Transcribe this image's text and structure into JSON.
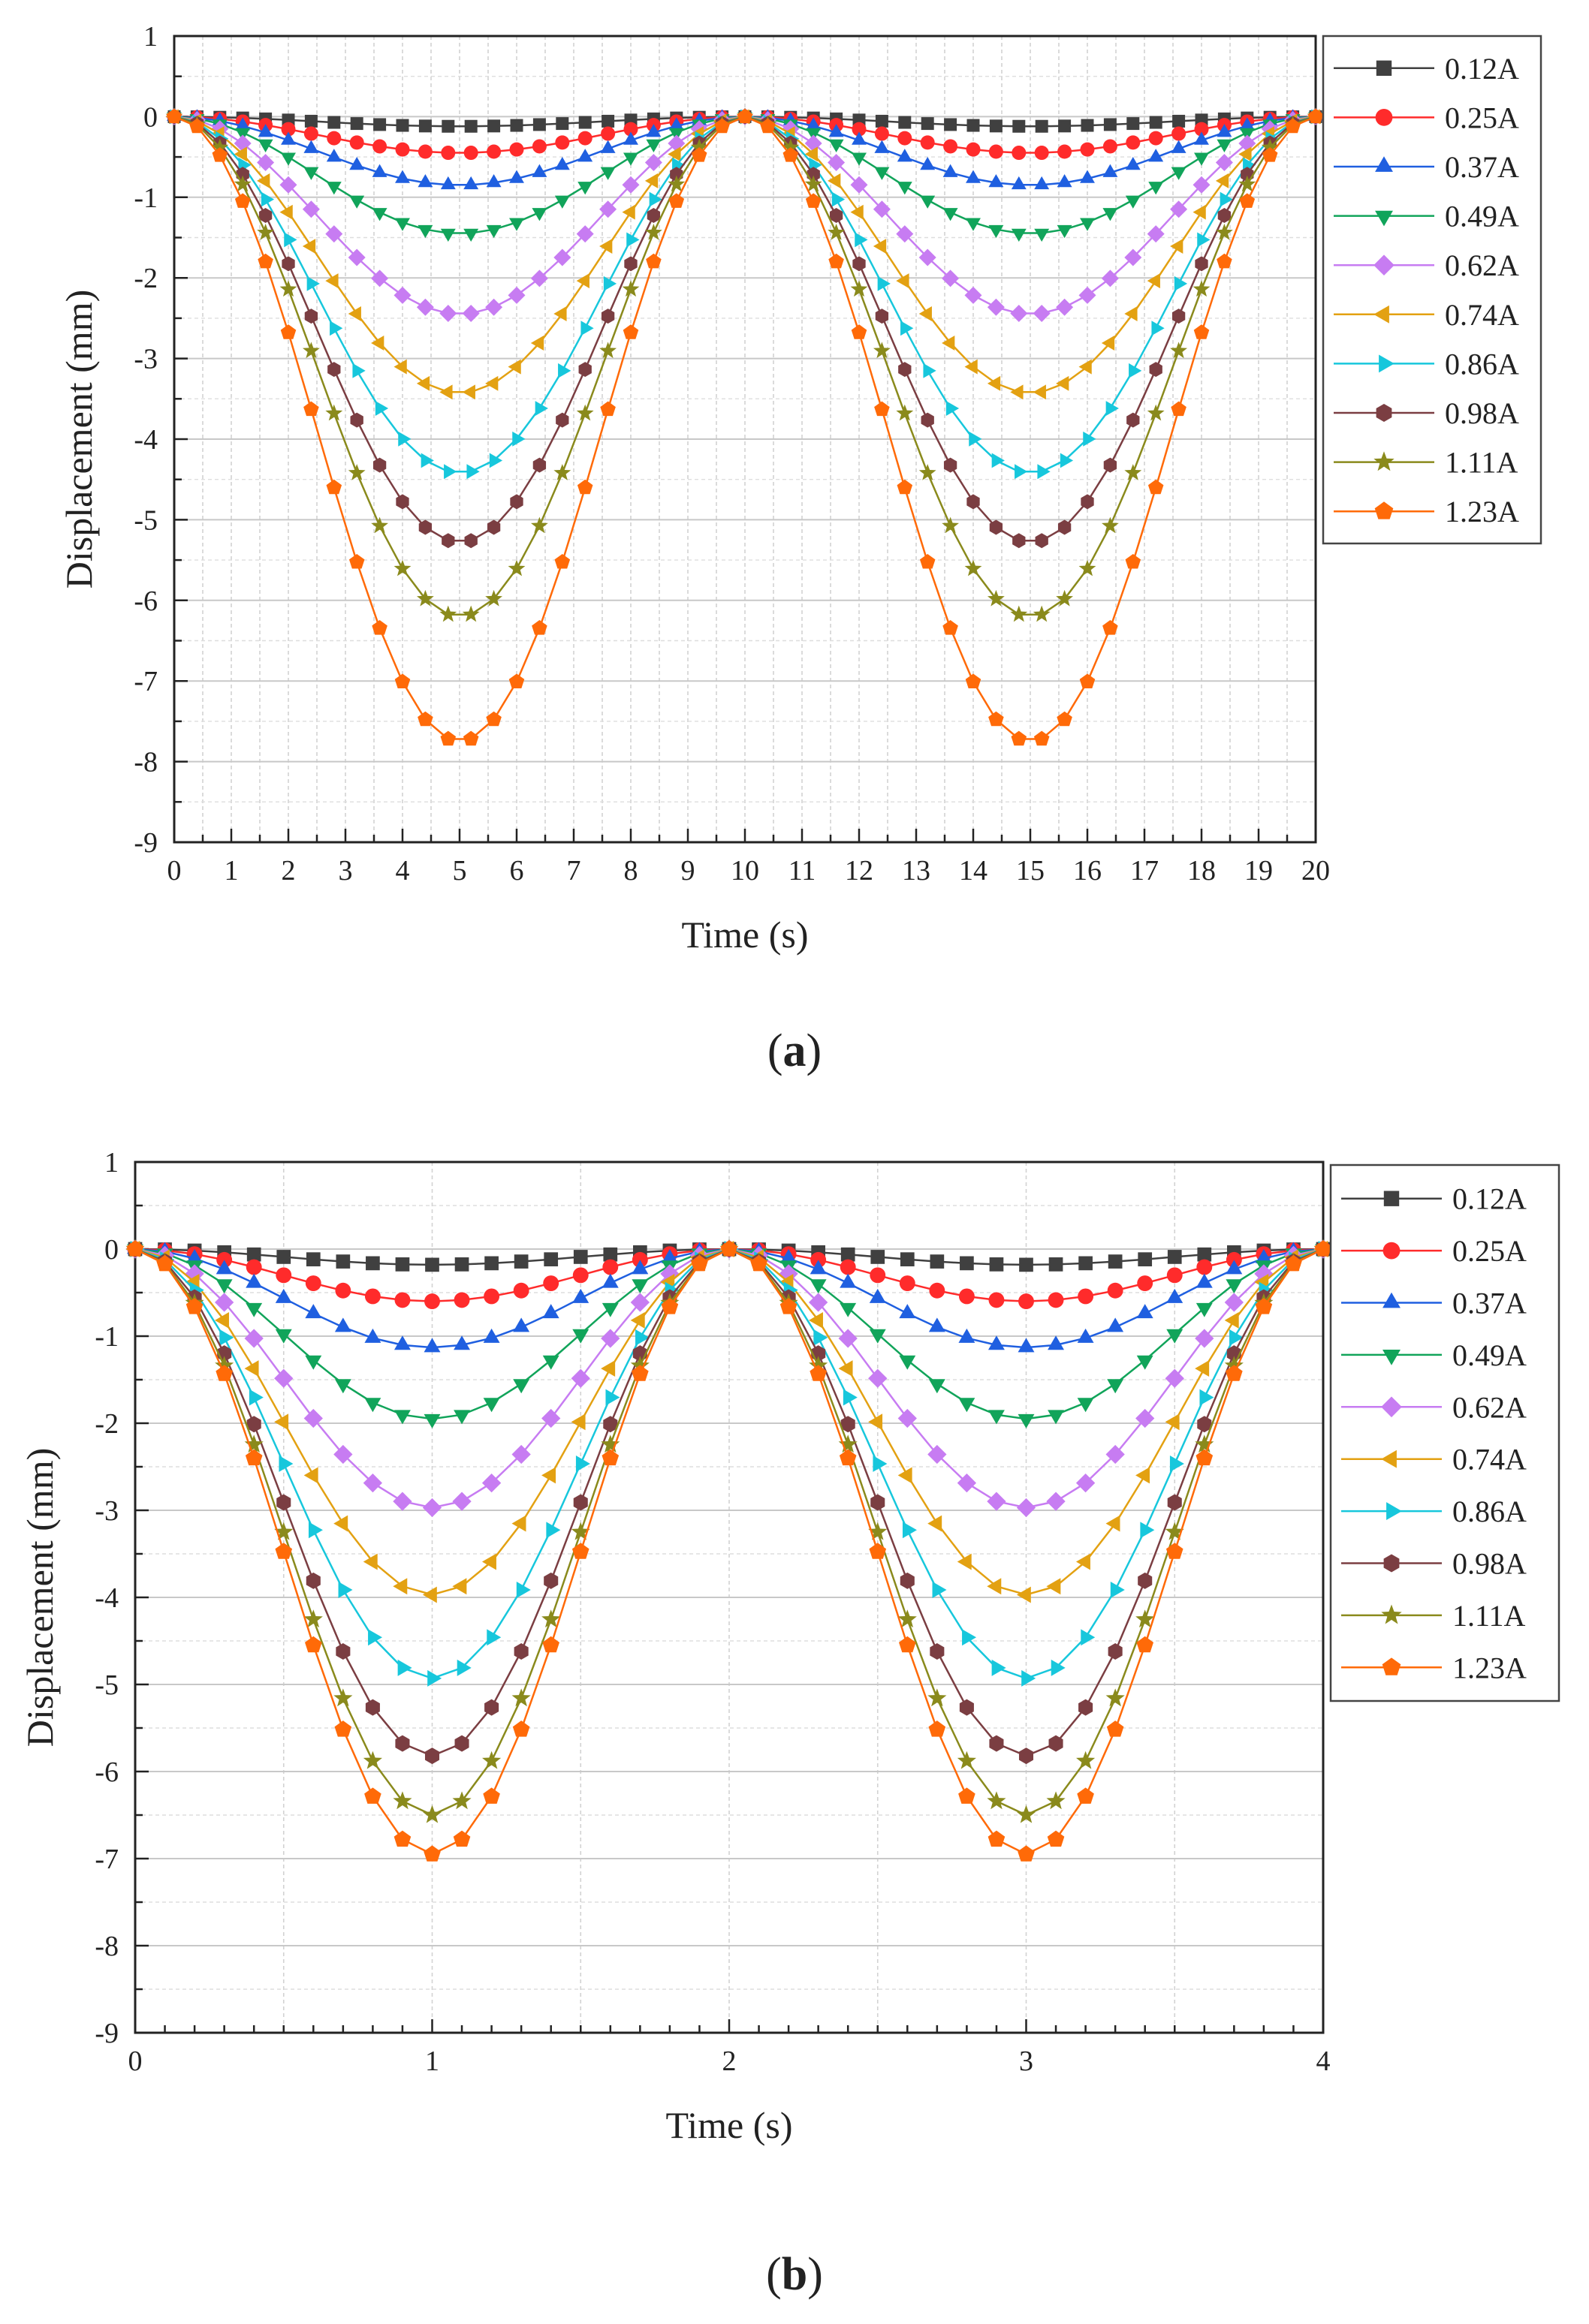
{
  "series_styles": [
    {
      "name": "0.12A",
      "color": "#404040",
      "marker": "square"
    },
    {
      "name": "0.25A",
      "color": "#ff2b2b",
      "marker": "circle"
    },
    {
      "name": "0.37A",
      "color": "#1f5fe0",
      "marker": "triangle-up"
    },
    {
      "name": "0.49A",
      "color": "#11a45a",
      "marker": "triangle-down"
    },
    {
      "name": "0.62A",
      "color": "#c77cf2",
      "marker": "diamond"
    },
    {
      "name": "0.74A",
      "color": "#e3a112",
      "marker": "triangle-left"
    },
    {
      "name": "0.86A",
      "color": "#17c7dc",
      "marker": "triangle-right"
    },
    {
      "name": "0.98A",
      "color": "#7b3e42",
      "marker": "hexagon"
    },
    {
      "name": "1.11A",
      "color": "#8a8a1c",
      "marker": "star"
    },
    {
      "name": "1.23A",
      "color": "#ff6a08",
      "marker": "pentagon"
    }
  ],
  "chart_data": [
    {
      "type": "line",
      "caption_label": "a",
      "xlabel": "Time (s)",
      "ylabel": "Displacement (mm)",
      "xlim": [
        0,
        20
      ],
      "ylim": [
        -9,
        1
      ],
      "xticks": [
        0,
        1,
        2,
        3,
        4,
        5,
        6,
        7,
        8,
        9,
        10,
        11,
        12,
        13,
        14,
        15,
        16,
        17,
        18,
        19,
        20
      ],
      "yticks": [
        1,
        0,
        -1,
        -2,
        -3,
        -4,
        -5,
        -6,
        -7,
        -8,
        -9
      ],
      "grid": true,
      "legend_position": "right",
      "period": 10,
      "sample_step": 0.4,
      "series": [
        {
          "name": "0.12A",
          "peak": -0.12
        },
        {
          "name": "0.25A",
          "peak": -0.45
        },
        {
          "name": "0.37A",
          "peak": -0.85
        },
        {
          "name": "0.49A",
          "peak": -1.45
        },
        {
          "name": "0.62A",
          "peak": -2.45
        },
        {
          "name": "0.74A",
          "peak": -3.43
        },
        {
          "name": "0.86A",
          "peak": -4.42
        },
        {
          "name": "0.98A",
          "peak": -5.28
        },
        {
          "name": "1.11A",
          "peak": -6.2
        },
        {
          "name": "1.23A",
          "peak": -7.75
        }
      ]
    },
    {
      "type": "line",
      "caption_label": "b",
      "xlabel": "Time (s)",
      "ylabel": "Displacement (mm)",
      "xlim": [
        0,
        4
      ],
      "ylim": [
        -9,
        1
      ],
      "xticks": [
        0,
        1,
        2,
        3,
        4
      ],
      "yticks": [
        1,
        0,
        -1,
        -2,
        -3,
        -4,
        -5,
        -6,
        -7,
        -8,
        -9
      ],
      "grid": true,
      "legend_position": "right",
      "period": 2,
      "sample_step": 0.1,
      "series": [
        {
          "name": "0.12A",
          "peak": -0.18
        },
        {
          "name": "0.25A",
          "peak": -0.6
        },
        {
          "name": "0.37A",
          "peak": -1.13
        },
        {
          "name": "0.49A",
          "peak": -1.95
        },
        {
          "name": "0.62A",
          "peak": -2.97
        },
        {
          "name": "0.74A",
          "peak": -3.97
        },
        {
          "name": "0.86A",
          "peak": -4.93
        },
        {
          "name": "0.98A",
          "peak": -5.82
        },
        {
          "name": "1.11A",
          "peak": -6.5
        },
        {
          "name": "1.23A",
          "peak": -6.95
        }
      ]
    }
  ]
}
